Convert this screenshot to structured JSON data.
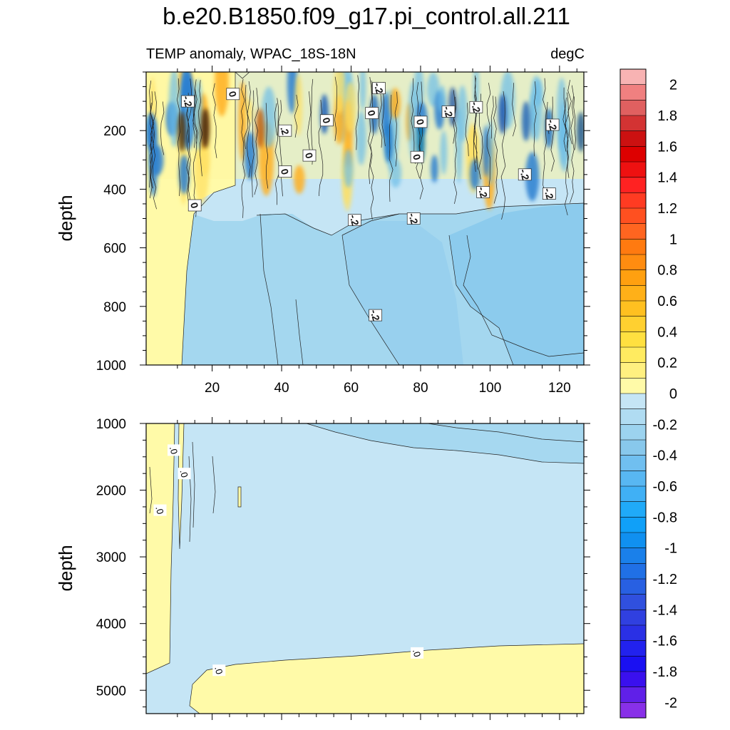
{
  "chart_data": {
    "type": "heatmap",
    "title": "b.e20.B1850.f09_g17.pi_control.all.211",
    "subtitle_left": "TEMP anomaly, WPAC_18S-18N",
    "subtitle_right": "degC",
    "ylabel": "depth",
    "colorbar": {
      "labels": [
        "2",
        "1.8",
        "1.6",
        "1.4",
        "1.2",
        "1",
        "0.8",
        "0.6",
        "0.4",
        "0.2",
        "0",
        "-0.2",
        "-0.4",
        "-0.6",
        "-0.8",
        "-1",
        "-1.2",
        "-1.4",
        "-1.6",
        "-1.8",
        "-2"
      ],
      "levels_count": 42,
      "colors_high_to_low": [
        "#f8b3b3",
        "#f08080",
        "#e06060",
        "#d33333",
        "#cc1111",
        "#dd0000",
        "#ee1111",
        "#ff2222",
        "#ff3b22",
        "#ff5020",
        "#ff6520",
        "#ff7a10",
        "#ff8c10",
        "#ffa010",
        "#ffb018",
        "#ffc020",
        "#ffd030",
        "#ffe040",
        "#ffeb60",
        "#fff080",
        "#fffaa8",
        "#c5e5f5",
        "#b0dcf2",
        "#9cd3ef",
        "#88c8ec",
        "#70bff0",
        "#58b7f2",
        "#40b0f5",
        "#20aaf8",
        "#10a0f8",
        "#1090f0",
        "#1a80ea",
        "#2070e6",
        "#2860e2",
        "#3050de",
        "#3040e0",
        "#2a30e5",
        "#2222ee",
        "#1a10f2",
        "#3a10ee",
        "#6020e8",
        "#8830e8"
      ]
    },
    "panels": [
      {
        "name": "upper",
        "ylim": [
          1000,
          0
        ],
        "xlim": [
          1,
          127
        ],
        "yticks": [
          200,
          400,
          600,
          800,
          1000
        ],
        "xticks": [
          20,
          40,
          60,
          80,
          100,
          120
        ],
        "contour_labels": [
          {
            "text": "-.2",
            "x": 13,
            "y": 100
          },
          {
            "text": "0",
            "x": 26,
            "y": 75
          },
          {
            "text": "-.2",
            "x": 68,
            "y": 55
          },
          {
            "text": "0",
            "x": 66,
            "y": 140
          },
          {
            "text": "0",
            "x": 53,
            "y": 165
          },
          {
            "text": ".2",
            "x": 41,
            "y": 200
          },
          {
            "text": "0",
            "x": 48,
            "y": 285
          },
          {
            "text": "0",
            "x": 80,
            "y": 170
          },
          {
            "text": "0",
            "x": 79,
            "y": 290
          },
          {
            "text": "-.2",
            "x": 88,
            "y": 135
          },
          {
            "text": "-.2",
            "x": 96,
            "y": 120
          },
          {
            "text": "-.2",
            "x": 118,
            "y": 180
          },
          {
            "text": "0",
            "x": 41,
            "y": 340
          },
          {
            "text": "-.2",
            "x": 110,
            "y": 350
          },
          {
            "text": "-.2",
            "x": 98,
            "y": 410
          },
          {
            "text": "-.2",
            "x": 117,
            "y": 415
          },
          {
            "text": "0",
            "x": 15,
            "y": 455
          },
          {
            "text": "-.2",
            "x": 61,
            "y": 505
          },
          {
            "text": "-.2",
            "x": 78,
            "y": 500
          },
          {
            "text": "-.2",
            "x": 67,
            "y": 830
          }
        ]
      },
      {
        "name": "lower",
        "ylim": [
          5350,
          1000
        ],
        "xlim": [
          1,
          127
        ],
        "yticks": [
          1000,
          2000,
          3000,
          4000,
          5000
        ],
        "contour_labels": [
          {
            "text": ".0",
            "x": 9,
            "y": 1400
          },
          {
            "text": ".0",
            "x": 12,
            "y": 1750
          },
          {
            "text": ".0",
            "x": 5,
            "y": 2300
          },
          {
            "text": ".0",
            "x": 22,
            "y": 4700
          },
          {
            "text": ".0",
            "x": 79,
            "y": 4440
          }
        ]
      }
    ]
  }
}
